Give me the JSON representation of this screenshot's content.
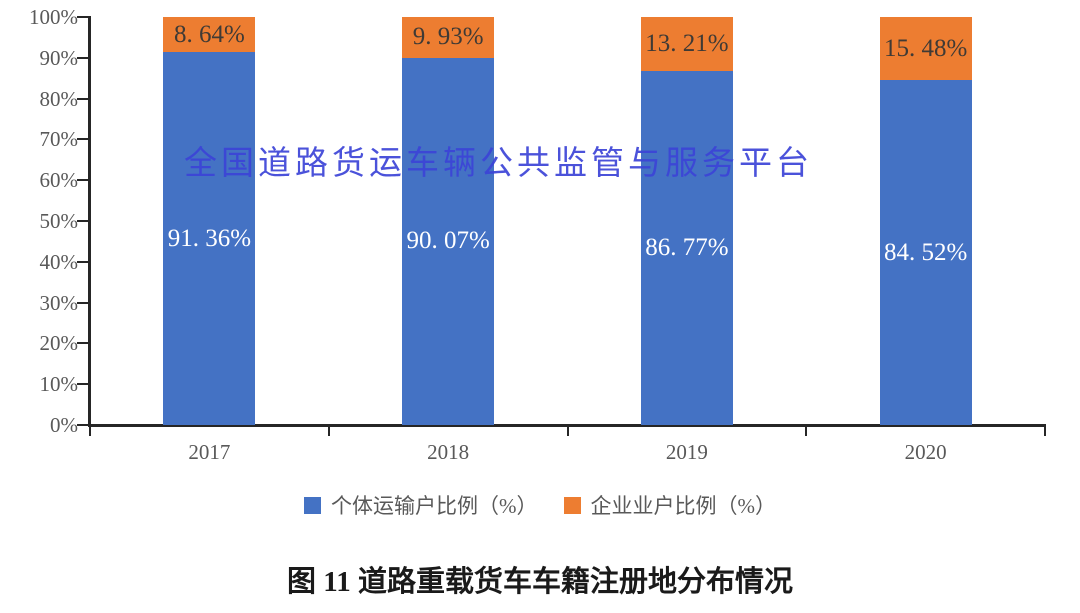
{
  "watermark": {
    "text": "全国道路货运车辆公共监管与服务平台",
    "color": "#3C44D7"
  },
  "caption": "图 11 道路重载货车车籍注册地分布情况",
  "legend": [
    {
      "label": "个体运输户比例（%）",
      "color": "#4472C4"
    },
    {
      "label": "企业业户比例（%）",
      "color": "#ED7D31"
    }
  ],
  "colors": {
    "axis": "#262626",
    "tick_label": "#595959",
    "blue_series": "#4472C4",
    "orange_series": "#ED7D31",
    "blue_label_text": "#FFFFFF",
    "orange_label_text": "#3F3A35",
    "background": "#FFFFFF"
  },
  "chart_data": {
    "type": "bar",
    "stacked": true,
    "title": "图 11 道路重载货车车籍注册地分布情况",
    "xlabel": "",
    "ylabel": "",
    "categories": [
      "2017",
      "2018",
      "2019",
      "2020"
    ],
    "series": [
      {
        "name": "个体运输户比例（%）",
        "color": "#4472C4",
        "values": [
          91.36,
          90.07,
          86.77,
          84.52
        ],
        "labels": [
          "91. 36%",
          "90. 07%",
          "86. 77%",
          "84. 52%"
        ],
        "label_color": "#FFFFFF"
      },
      {
        "name": "企业业户比例（%）",
        "color": "#ED7D31",
        "values": [
          8.64,
          9.93,
          13.21,
          15.48
        ],
        "labels": [
          "8. 64%",
          "9. 93%",
          "13. 21%",
          "15. 48%"
        ],
        "label_color": "#3F3A35"
      }
    ],
    "y_ticks": [
      "0%",
      "10%",
      "20%",
      "30%",
      "40%",
      "50%",
      "60%",
      "70%",
      "80%",
      "90%",
      "100%"
    ],
    "ylim": [
      0,
      100
    ],
    "grid": false,
    "legend_position": "bottom"
  }
}
